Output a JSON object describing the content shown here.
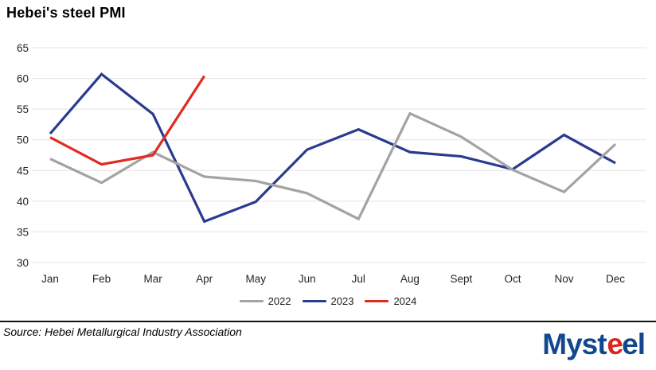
{
  "title": "Hebei's steel PMI",
  "chart_data": {
    "type": "line",
    "title": "Hebei's steel PMI",
    "categories": [
      "Jan",
      "Feb",
      "Mar",
      "Apr",
      "May",
      "Jun",
      "Jul",
      "Aug",
      "Sept",
      "Oct",
      "Nov",
      "Dec"
    ],
    "y_ticks": [
      65,
      60,
      55,
      50,
      45,
      40,
      35,
      30
    ],
    "ylim": [
      30,
      65
    ],
    "grid": "horizontal-only",
    "gridline_color": "#e4e4e4",
    "axis_label_color": "#262626",
    "legend_position": "bottom-center",
    "series": [
      {
        "name": "2022",
        "color": "#a3a3a3",
        "draw_order": 2,
        "values": [
          46.9,
          43.0,
          48.0,
          44.0,
          43.3,
          41.3,
          37.1,
          54.3,
          50.5,
          45.1,
          41.5,
          49.3
        ]
      },
      {
        "name": "2023",
        "color": "#2b3a8f",
        "draw_order": 1,
        "values": [
          51.0,
          60.7,
          54.2,
          36.7,
          39.9,
          48.4,
          51.7,
          48.0,
          47.3,
          45.2,
          50.8,
          46.2
        ]
      },
      {
        "name": "2024",
        "color": "#e02b20",
        "draw_order": 3,
        "values": [
          50.4,
          46.0,
          47.5,
          60.4
        ]
      }
    ]
  },
  "footer": {
    "source": "Source: Hebei Metallurgical Industry Association",
    "logo": {
      "part1": "Myst",
      "part2": "e",
      "part3": "el"
    }
  }
}
